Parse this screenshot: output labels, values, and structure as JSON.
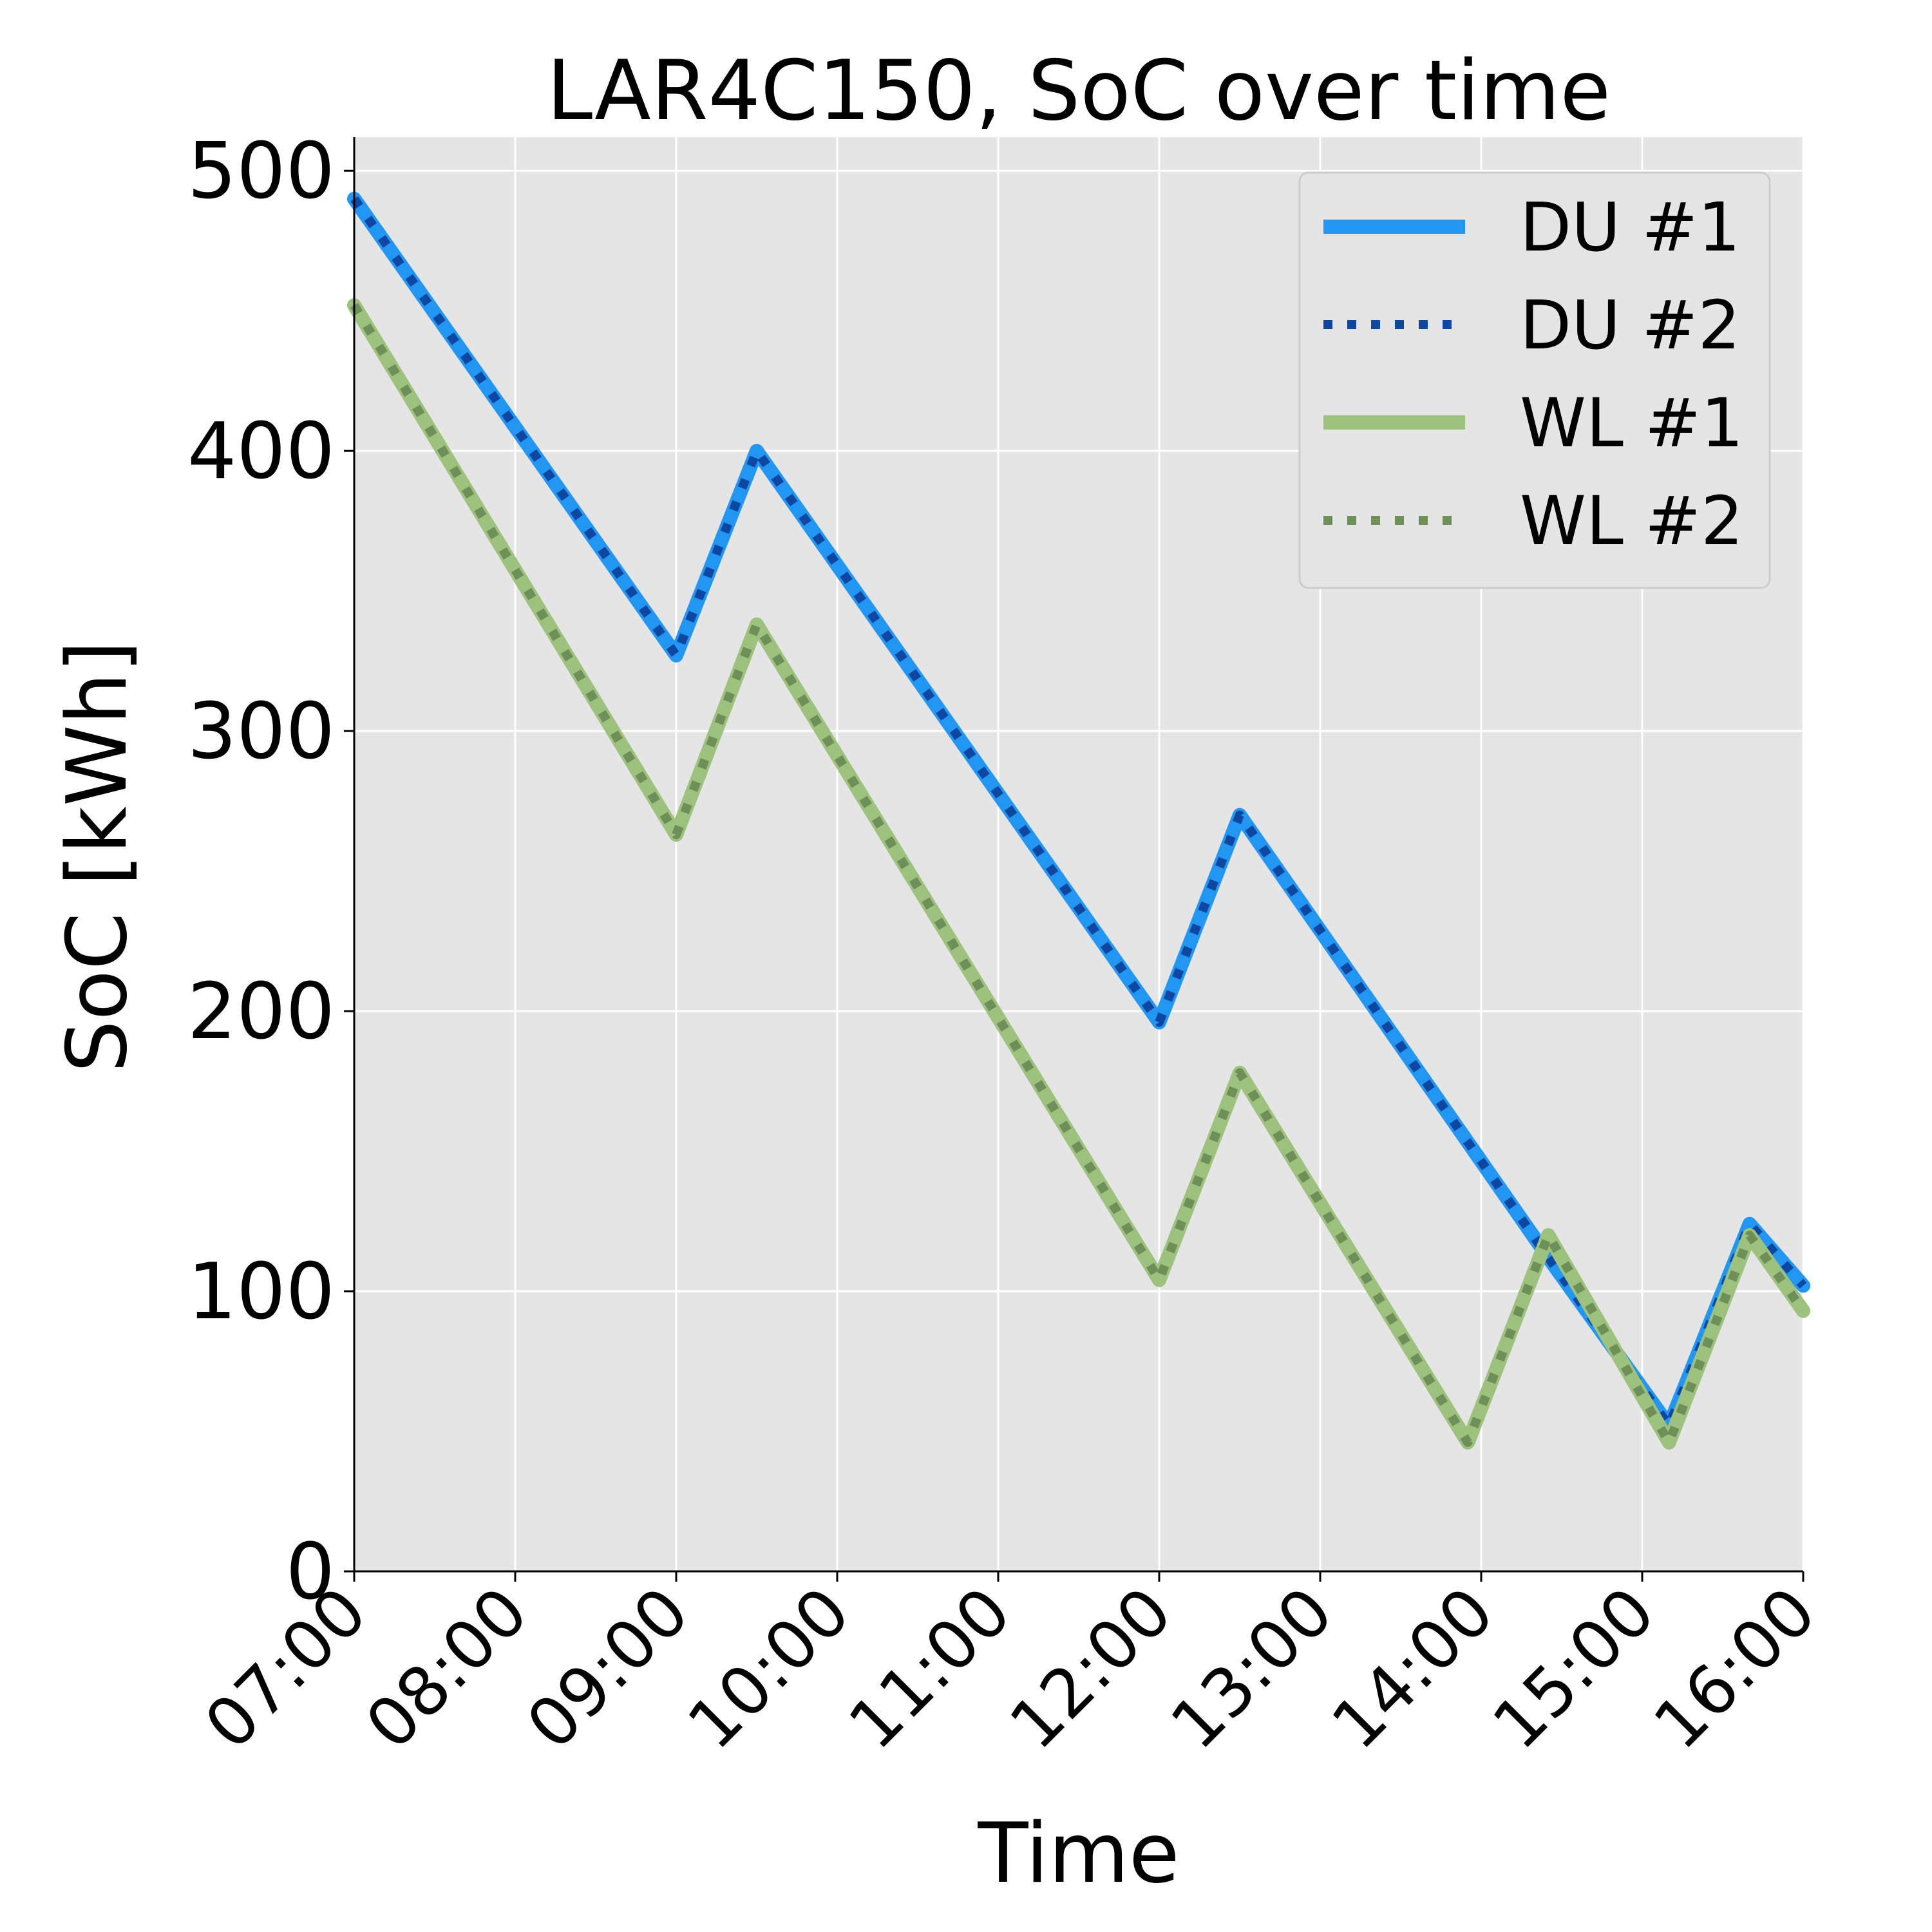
{
  "chart_data": {
    "type": "line",
    "title": "LAR4C150, SoC over time",
    "xlabel": "Time",
    "ylabel": "SoC [kWh]",
    "x_ticks": [
      "07:00",
      "08:00",
      "09:00",
      "10:00",
      "11:00",
      "12:00",
      "13:00",
      "14:00",
      "15:00",
      "16:00"
    ],
    "xlim": [
      "07:00",
      "16:00"
    ],
    "y_ticks": [
      0,
      100,
      200,
      300,
      400,
      500
    ],
    "ylim": [
      0,
      512
    ],
    "grid": true,
    "legend_position": "top-right",
    "series": [
      {
        "name": "DU #1",
        "style": "solid",
        "color": "#2196F3",
        "x": [
          "07:00",
          "09:00",
          "09:30",
          "12:00",
          "12:30",
          "14:25",
          "15:10",
          "15:40",
          "16:00"
        ],
        "y": [
          490,
          327,
          400,
          196,
          270,
          112,
          52,
          124,
          102
        ]
      },
      {
        "name": "DU #2",
        "style": "dotted",
        "color": "#0D47A1",
        "x": [
          "07:00",
          "09:00",
          "09:30",
          "12:00",
          "12:30",
          "14:25",
          "15:10",
          "15:40",
          "16:00"
        ],
        "y": [
          490,
          327,
          400,
          196,
          270,
          112,
          52,
          124,
          102
        ]
      },
      {
        "name": "WL #1",
        "style": "solid",
        "color": "#9CC27E",
        "x": [
          "07:00",
          "09:00",
          "09:30",
          "12:00",
          "12:30",
          "13:55",
          "14:25",
          "15:10",
          "15:40",
          "16:00"
        ],
        "y": [
          452,
          263,
          338,
          104,
          178,
          46,
          120,
          46,
          120,
          93
        ]
      },
      {
        "name": "WL #2",
        "style": "dotted",
        "color": "#6E8F57",
        "x": [
          "07:00",
          "09:00",
          "09:30",
          "12:00",
          "12:30",
          "13:55",
          "14:25",
          "15:10",
          "15:40",
          "16:00"
        ],
        "y": [
          452,
          263,
          338,
          104,
          178,
          46,
          120,
          46,
          120,
          93
        ]
      }
    ]
  }
}
